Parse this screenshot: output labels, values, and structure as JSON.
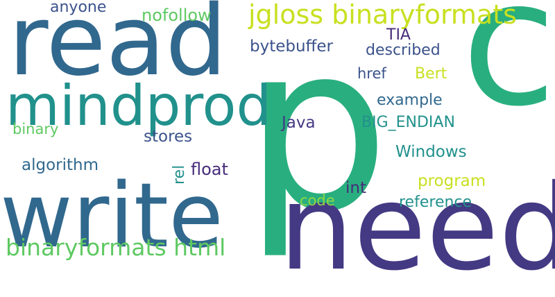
{
  "words": {
    "p": "p",
    "c": "c",
    "need": "need",
    "read": "read",
    "write": "write",
    "mindprod": "mindprod",
    "jgloss": "jgloss binaryformats",
    "binaryformats_html": "binaryformats html",
    "anyone": "anyone",
    "nofollow": "nofollow",
    "tia": "TIA",
    "bytebuffer": "bytebuffer",
    "described": "described",
    "href": "href",
    "bert": "Bert",
    "example": "example",
    "java": "Java",
    "big_endian": "BIG_ENDIAN",
    "binary": "binary",
    "stores": "stores",
    "windows": "Windows",
    "algorithm": "algorithm",
    "rel": "rel",
    "float": "float",
    "program": "program",
    "int": "int",
    "code": "code",
    "reference": "reference"
  },
  "colors": {
    "purple": "#443983",
    "navy": "#3b528b",
    "blue": "#31688e",
    "teal": "#21918c",
    "green": "#29af7f",
    "lightgreen": "#5ec962",
    "lime": "#8fd744",
    "yellow": "#c8e020",
    "darkpurple": "#472c7a"
  }
}
